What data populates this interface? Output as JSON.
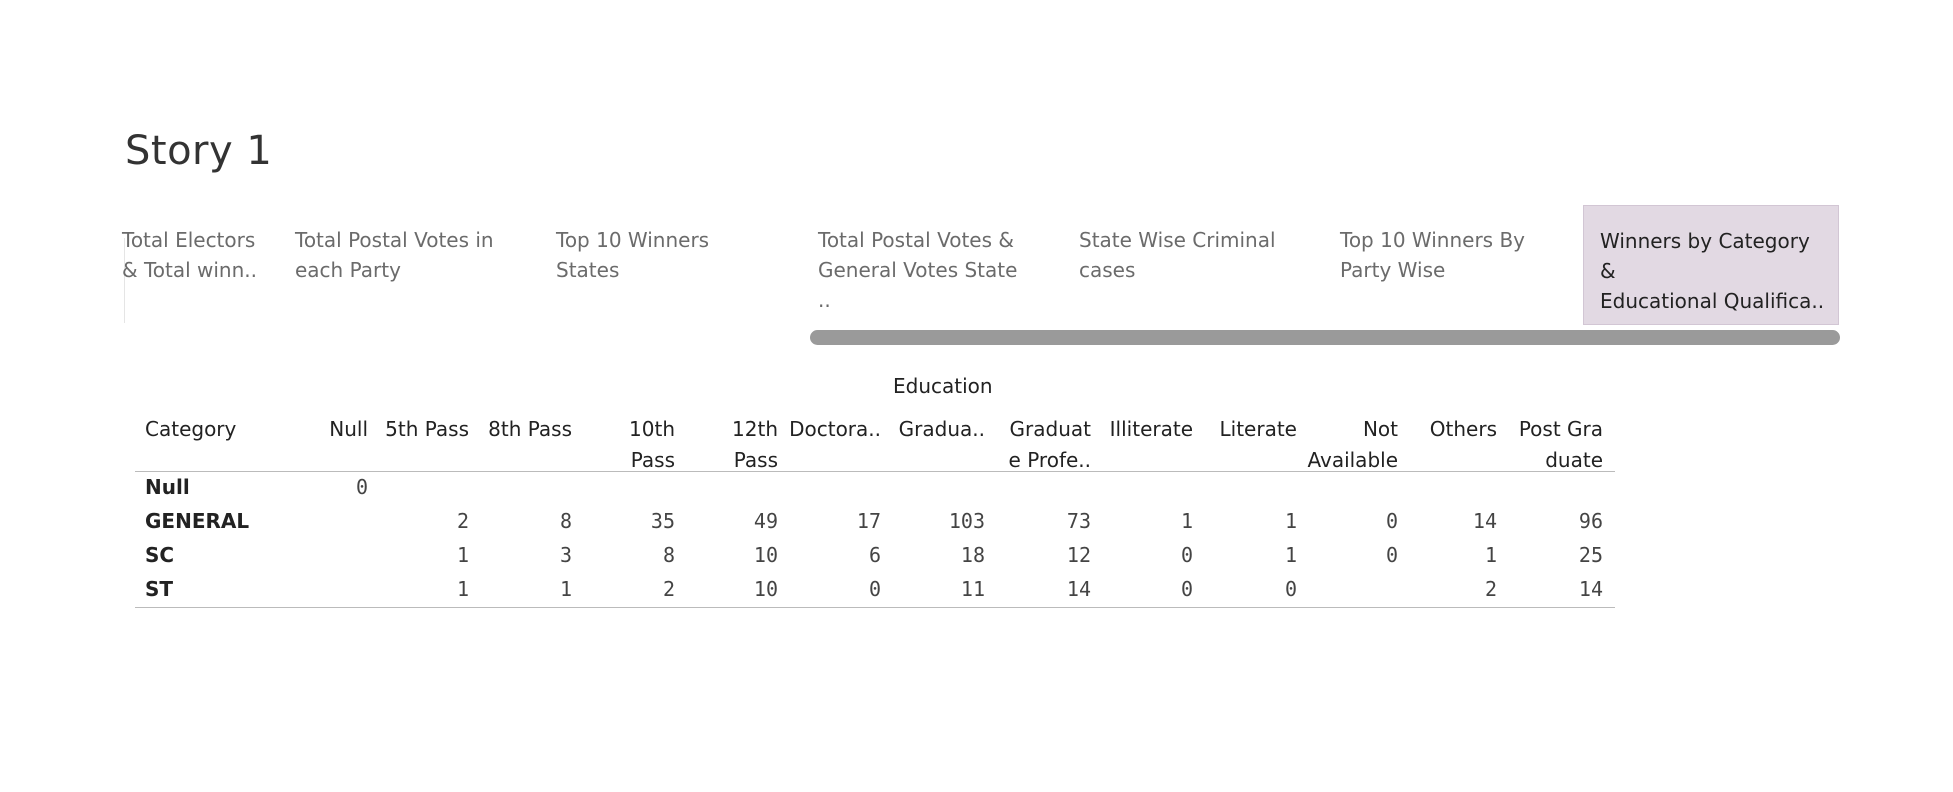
{
  "story": {
    "title": "Story 1"
  },
  "tabs": [
    {
      "label": "Total Electors\n& Total winn..",
      "active": false
    },
    {
      "label": "Total Postal Votes in\neach Party",
      "active": false
    },
    {
      "label": "Top 10 Winners States",
      "active": false
    },
    {
      "label": "Total Postal Votes &\nGeneral Votes State ..",
      "active": false
    },
    {
      "label": "State Wise Criminal\ncases",
      "active": false
    },
    {
      "label": "Top 10 Winners By\nParty Wise",
      "active": false
    },
    {
      "label": "Winners by Category &\nEducational Qualifica..",
      "active": true
    }
  ],
  "table": {
    "column_group_header": "Education",
    "row_header": "Category",
    "columns": [
      "Null",
      "5th Pass",
      "8th Pass",
      "10th\nPass",
      "12th\nPass",
      "Doctora..",
      "Gradua..",
      "Graduat\ne Profe..",
      "Illiterate",
      "Literate",
      "Not\nAvailable",
      "Others",
      "Post Gra\nduate"
    ],
    "rows": [
      {
        "label": "Null",
        "values": [
          "0",
          "",
          "",
          "",
          "",
          "",
          "",
          "",
          "",
          "",
          "",
          "",
          ""
        ]
      },
      {
        "label": "GENERAL",
        "values": [
          "",
          "2",
          "8",
          "35",
          "49",
          "17",
          "103",
          "73",
          "1",
          "1",
          "0",
          "14",
          "96"
        ]
      },
      {
        "label": "SC",
        "values": [
          "",
          "1",
          "3",
          "8",
          "10",
          "6",
          "18",
          "12",
          "0",
          "1",
          "0",
          "1",
          "25"
        ]
      },
      {
        "label": "ST",
        "values": [
          "",
          "1",
          "1",
          "2",
          "10",
          "0",
          "11",
          "14",
          "0",
          "0",
          "",
          "2",
          "14"
        ]
      }
    ]
  }
}
